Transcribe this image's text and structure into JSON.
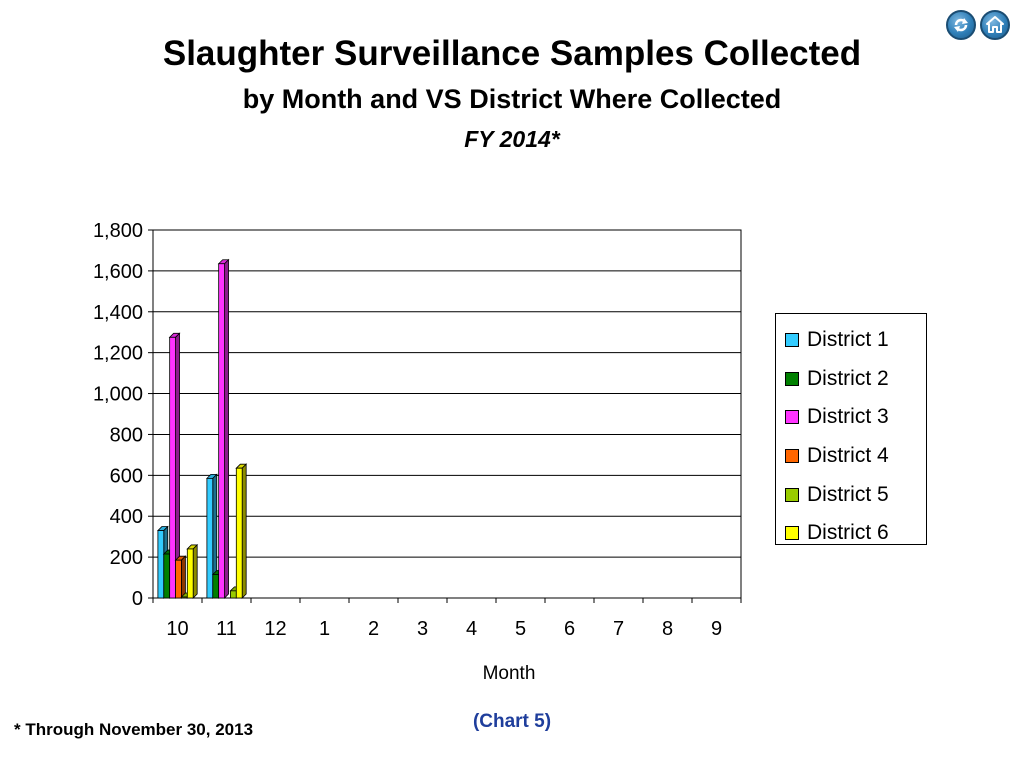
{
  "title": {
    "main": "Slaughter Surveillance Samples Collected",
    "sub": "by Month and VS District Where Collected",
    "fy": "FY 2014*"
  },
  "nav": {
    "icons": [
      "refresh-icon",
      "home-icon"
    ]
  },
  "chart_data": {
    "type": "bar",
    "categories": [
      "10",
      "11",
      "12",
      "1",
      "2",
      "3",
      "4",
      "5",
      "6",
      "7",
      "8",
      "9"
    ],
    "series": [
      {
        "name": "District 1",
        "color": "#33ccff",
        "values": [
          330,
          585,
          0,
          0,
          0,
          0,
          0,
          0,
          0,
          0,
          0,
          0
        ]
      },
      {
        "name": "District 2",
        "color": "#008000",
        "values": [
          215,
          115,
          0,
          0,
          0,
          0,
          0,
          0,
          0,
          0,
          0,
          0
        ]
      },
      {
        "name": "District 3",
        "color": "#ff33ff",
        "values": [
          1275,
          1635,
          0,
          0,
          0,
          0,
          0,
          0,
          0,
          0,
          0,
          0
        ]
      },
      {
        "name": "District 4",
        "color": "#ff6600",
        "values": [
          185,
          0,
          0,
          0,
          0,
          0,
          0,
          0,
          0,
          0,
          0,
          0
        ]
      },
      {
        "name": "District 5",
        "color": "#99cc00",
        "values": [
          5,
          35,
          0,
          0,
          0,
          0,
          0,
          0,
          0,
          0,
          0,
          0
        ]
      },
      {
        "name": "District 6",
        "color": "#ffff00",
        "values": [
          240,
          635,
          0,
          0,
          0,
          0,
          0,
          0,
          0,
          0,
          0,
          0
        ]
      }
    ],
    "yticks": [
      "0",
      "200",
      "400",
      "600",
      "800",
      "1,000",
      "1,200",
      "1,400",
      "1,600",
      "1,800"
    ],
    "ylim": [
      0,
      1800
    ],
    "xlabel": "Month",
    "ylabel": "",
    "grid": true,
    "legend_position": "right"
  },
  "footnote": "*  Through November 30, 2013",
  "chart_ref": "(Chart 5)"
}
